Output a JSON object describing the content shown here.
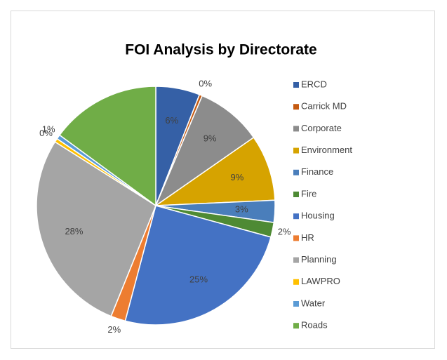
{
  "chart_data": {
    "type": "pie",
    "title": "FOI Analysis by Directorate",
    "categories": [
      "ERCD",
      "Carrick MD",
      "Corporate",
      "Environment",
      "Finance",
      "Fire",
      "Housing",
      "HR",
      "Planning",
      "LAWPRO",
      "Water",
      "Roads"
    ],
    "values": [
      6,
      0.4,
      9,
      9,
      3,
      2,
      25,
      2,
      28,
      0.5,
      0.6,
      15
    ],
    "value_labels": [
      "6%",
      "0%",
      "9%",
      "9%",
      "3%",
      "2%",
      "25%",
      "2%",
      "28%",
      "0%",
      "1%",
      null
    ],
    "colors": [
      "#3560a6",
      "#c55a11",
      "#8c8c8c",
      "#d6a300",
      "#4a7ebb",
      "#4e8a34",
      "#4472c4",
      "#ed7d31",
      "#a5a5a5",
      "#ffc000",
      "#5b9bd5",
      "#70ad47"
    ],
    "legend": "right"
  }
}
